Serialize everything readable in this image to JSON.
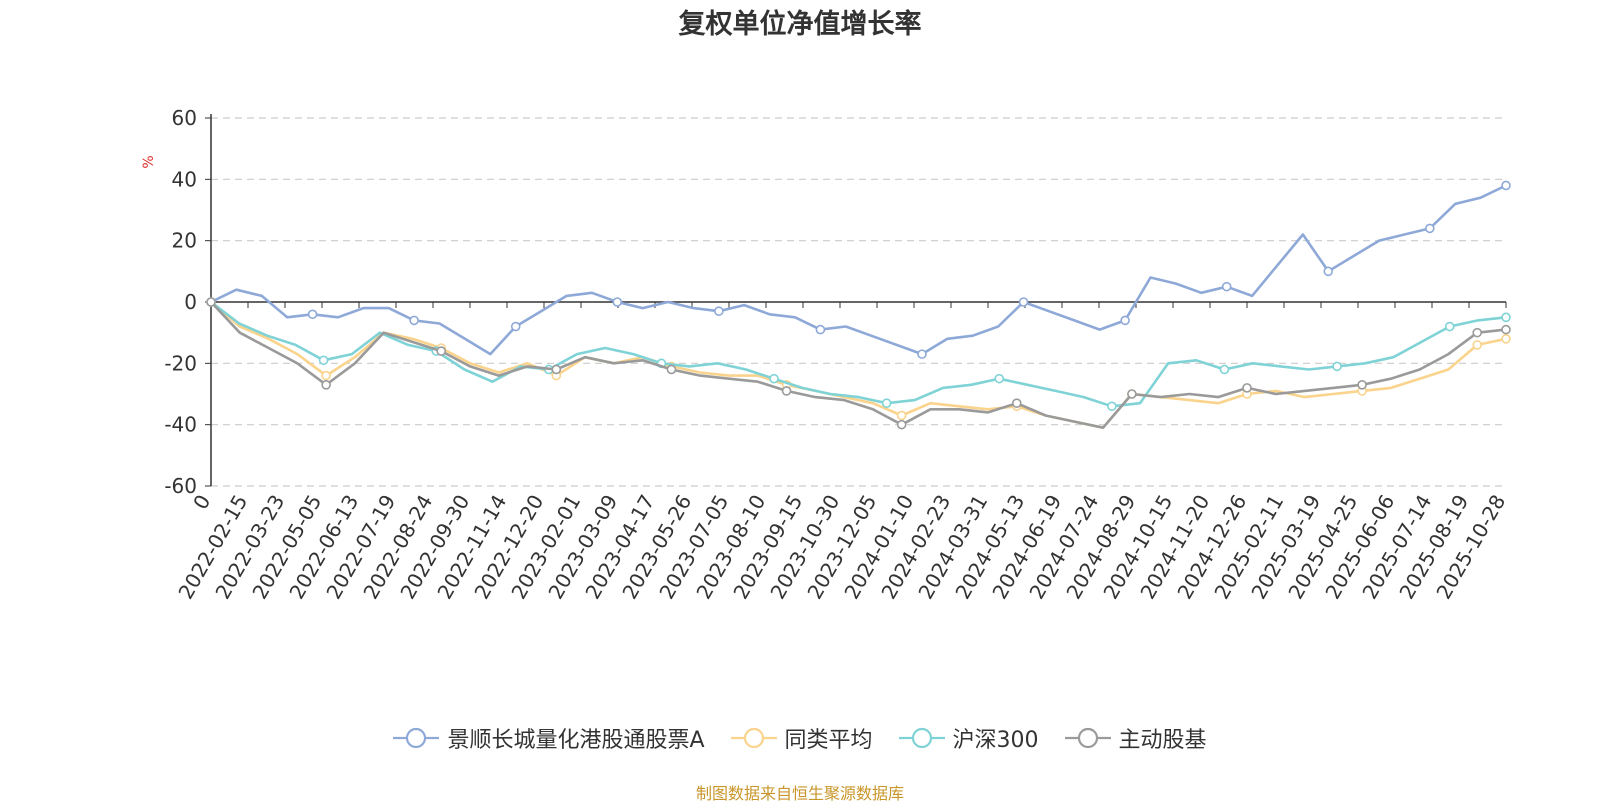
{
  "page": {
    "source": "制图数据来自恒生聚源数据库"
  },
  "chart_data": {
    "type": "line",
    "title": "复权单位净值增长率",
    "ylabel": "%",
    "ylim": [
      -60,
      60
    ],
    "yticks": [
      60,
      40,
      20,
      0,
      -20,
      -40,
      -60
    ],
    "grid": true,
    "legend_position": "bottom",
    "x_tick_labels": [
      "0",
      "2022-02-15",
      "2022-03-23",
      "2022-05-05",
      "2022-06-13",
      "2022-07-19",
      "2022-08-24",
      "2022-09-30",
      "2022-11-14",
      "2022-12-20",
      "2023-02-01",
      "2023-03-09",
      "2023-04-17",
      "2023-05-26",
      "2023-07-05",
      "2023-08-10",
      "2023-09-15",
      "2023-10-30",
      "2023-12-05",
      "2024-01-10",
      "2024-02-23",
      "2024-03-31",
      "2024-05-13",
      "2024-06-19",
      "2024-07-24",
      "2024-08-29",
      "2024-10-15",
      "2024-11-20",
      "2024-12-26",
      "2025-02-11",
      "2025-03-19",
      "2025-04-25",
      "2025-06-06",
      "2025-07-14",
      "2025-08-19",
      "2025-10-28"
    ],
    "series": [
      {
        "name": "景顺长城量化港股通股票A",
        "color": "#8ea9d8",
        "values": [
          0,
          4,
          2,
          -5,
          -4,
          -5,
          -2,
          -2,
          -6,
          -7,
          -12,
          -17,
          -8,
          -3,
          2,
          3,
          0,
          -2,
          0,
          -2,
          -3,
          -1,
          -4,
          -5,
          -9,
          -8,
          -11,
          -14,
          -17,
          -12,
          -11,
          -8,
          0,
          -3,
          -6,
          -9,
          -6,
          8,
          6,
          3,
          5,
          2,
          12,
          22,
          10,
          15,
          20,
          22,
          24,
          32,
          34,
          38
        ]
      },
      {
        "name": "同类平均",
        "color": "#fad38c",
        "values": [
          0,
          -8,
          -12,
          -17,
          -24,
          -18,
          -10,
          -12,
          -15,
          -20,
          -23,
          -20,
          -24,
          -18,
          -20,
          -18,
          -21,
          -23,
          -24,
          -24,
          -27,
          -29,
          -31,
          -33,
          -37,
          -33,
          -34,
          -35,
          -34,
          -37,
          -39,
          -41,
          -30,
          -31,
          -32,
          -33,
          -30,
          -29,
          -31,
          -30,
          -29,
          -28,
          -25,
          -22,
          -14,
          -12
        ]
      },
      {
        "name": "沪深300",
        "color": "#7fd3d6",
        "values": [
          0,
          -7,
          -11,
          -14,
          -19,
          -17,
          -10,
          -14,
          -16,
          -22,
          -26,
          -21,
          -22,
          -17,
          -15,
          -17,
          -20,
          -21,
          -20,
          -22,
          -25,
          -28,
          -30,
          -31,
          -33,
          -32,
          -28,
          -27,
          -25,
          -27,
          -29,
          -31,
          -34,
          -33,
          -20,
          -19,
          -22,
          -20,
          -21,
          -22,
          -21,
          -20,
          -18,
          -13,
          -8,
          -6,
          -5
        ]
      },
      {
        "name": "主动股基",
        "color": "#9a9a9a",
        "values": [
          0,
          -10,
          -15,
          -20,
          -27,
          -20,
          -10,
          -13,
          -16,
          -21,
          -24,
          -21,
          -22,
          -18,
          -20,
          -19,
          -22,
          -24,
          -25,
          -26,
          -29,
          -31,
          -32,
          -35,
          -40,
          -35,
          -35,
          -36,
          -33,
          -37,
          -39,
          -41,
          -30,
          -31,
          -30,
          -31,
          -28,
          -30,
          -29,
          -28,
          -27,
          -25,
          -22,
          -17,
          -10,
          -9
        ]
      }
    ]
  }
}
